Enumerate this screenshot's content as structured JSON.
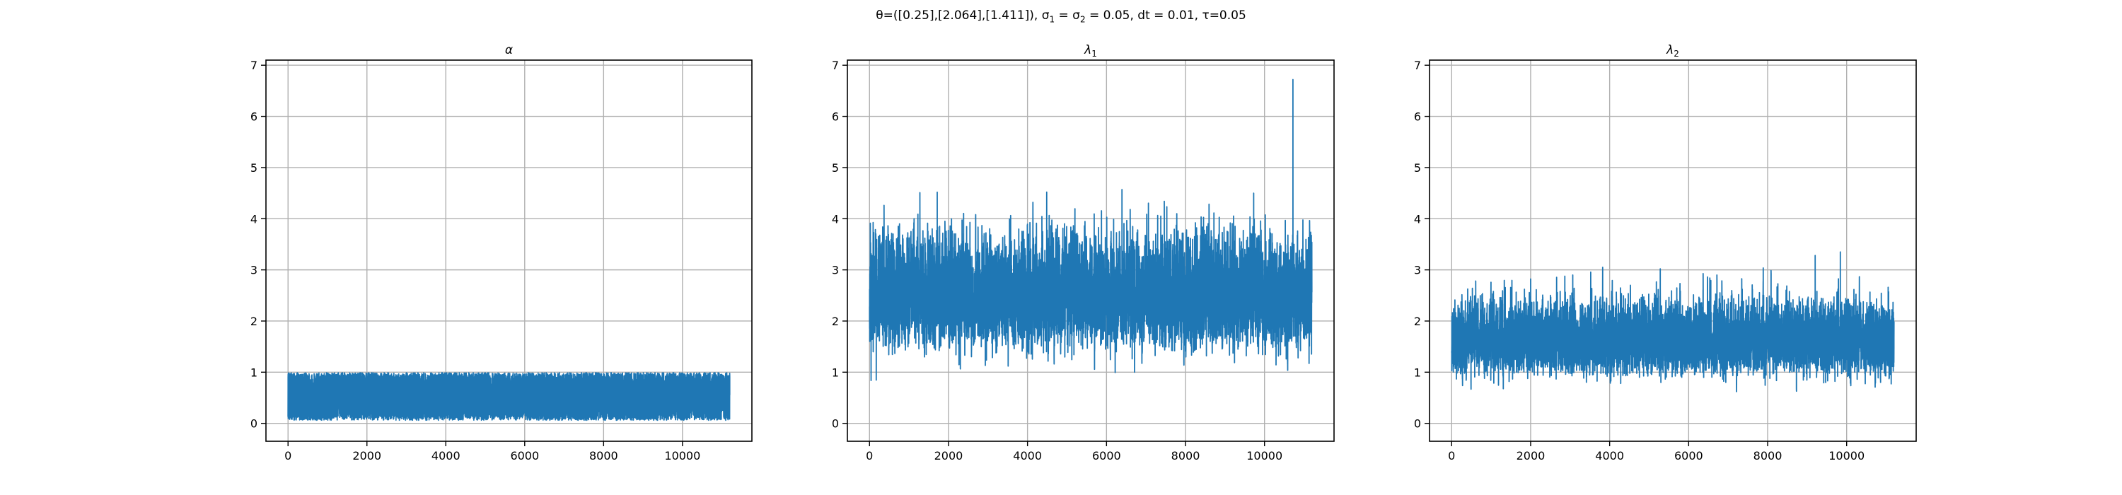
{
  "figure": {
    "suptitle_parts": {
      "a": "θ=([0.25],[2.064],[1.411]), σ",
      "sub1": "1",
      "b": " = σ",
      "sub2": "2",
      "c": " = 0.05, dt = 0.01, τ=0.05"
    }
  },
  "colors": {
    "series": "#1f77b4",
    "grid": "#b0b0b0",
    "axes": "#000000"
  },
  "chart_data": [
    {
      "type": "line",
      "title": "α",
      "title_sub": "",
      "xlabel": "",
      "ylabel": "",
      "xlim": [
        -560,
        11760
      ],
      "ylim": [
        -0.35,
        7.1
      ],
      "xticks": [
        0,
        2000,
        4000,
        6000,
        8000,
        10000
      ],
      "yticks": [
        0,
        1,
        2,
        3,
        4,
        5,
        6,
        7
      ],
      "grid": true,
      "n_points": 11200,
      "series": [
        {
          "values_summary": {
            "min": 0.06,
            "max": 0.99,
            "center": 0.5,
            "spread": 0.28,
            "range": [
              0.06,
              0.99
            ]
          }
        }
      ]
    },
    {
      "type": "line",
      "title": "λ",
      "title_sub": "1",
      "xlabel": "",
      "ylabel": "",
      "xlim": [
        -560,
        11760
      ],
      "ylim": [
        -0.35,
        7.1
      ],
      "xticks": [
        0,
        2000,
        4000,
        6000,
        8000,
        10000
      ],
      "yticks": [
        0,
        1,
        2,
        3,
        4,
        5,
        6,
        7
      ],
      "grid": true,
      "n_points": 11200,
      "series": [
        {
          "values_summary": {
            "min": 0.75,
            "max": 6.72,
            "center": 2.3,
            "spread": 0.75,
            "range": [
              0.75,
              6.72
            ]
          }
        }
      ]
    },
    {
      "type": "line",
      "title": "λ",
      "title_sub": "2",
      "xlabel": "",
      "ylabel": "",
      "xlim": [
        -560,
        11760
      ],
      "ylim": [
        -0.35,
        7.1
      ],
      "xticks": [
        0,
        2000,
        4000,
        6000,
        8000,
        10000
      ],
      "yticks": [
        0,
        1,
        2,
        3,
        4,
        5,
        6,
        7
      ],
      "grid": true,
      "n_points": 11200,
      "series": [
        {
          "values_summary": {
            "min": 0.42,
            "max": 3.35,
            "center": 1.5,
            "spread": 0.5,
            "range": [
              0.42,
              3.35
            ]
          }
        }
      ]
    }
  ]
}
